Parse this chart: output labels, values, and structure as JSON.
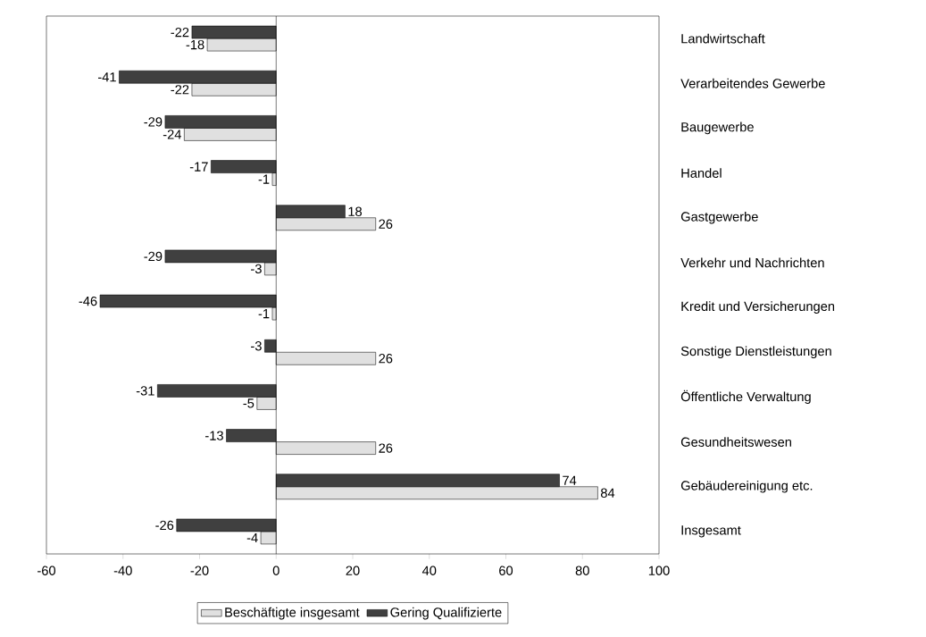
{
  "chart_data": {
    "type": "bar",
    "orientation": "horizontal",
    "categories": [
      "Landwirtschaft",
      "Verarbeitendes Gewerbe",
      "Baugewerbe",
      "Handel",
      "Gastgewerbe",
      "Verkehr und Nachrichten",
      "Kredit und Versicherungen",
      "Sonstige Dienstleistungen",
      "Öffentliche Verwaltung",
      "Gesundheitswesen",
      "Gebäudereinigung etc.",
      "Insgesamt"
    ],
    "series": [
      {
        "name": "Beschäftigte insgesamt",
        "color": "#e0e0e0",
        "values": [
          -18,
          -22,
          -24,
          -1,
          26,
          -3,
          -1,
          26,
          -5,
          26,
          84,
          -4
        ]
      },
      {
        "name": "Gering Qualifizierte",
        "color": "#404040",
        "values": [
          -22,
          -41,
          -29,
          -17,
          18,
          -29,
          -46,
          -3,
          -31,
          -13,
          74,
          -26
        ]
      }
    ],
    "xlim": [
      -60,
      100
    ],
    "xticks": [
      -60,
      -40,
      -20,
      0,
      20,
      40,
      60,
      80,
      100
    ],
    "data_labels": true,
    "legend": "bottom"
  }
}
